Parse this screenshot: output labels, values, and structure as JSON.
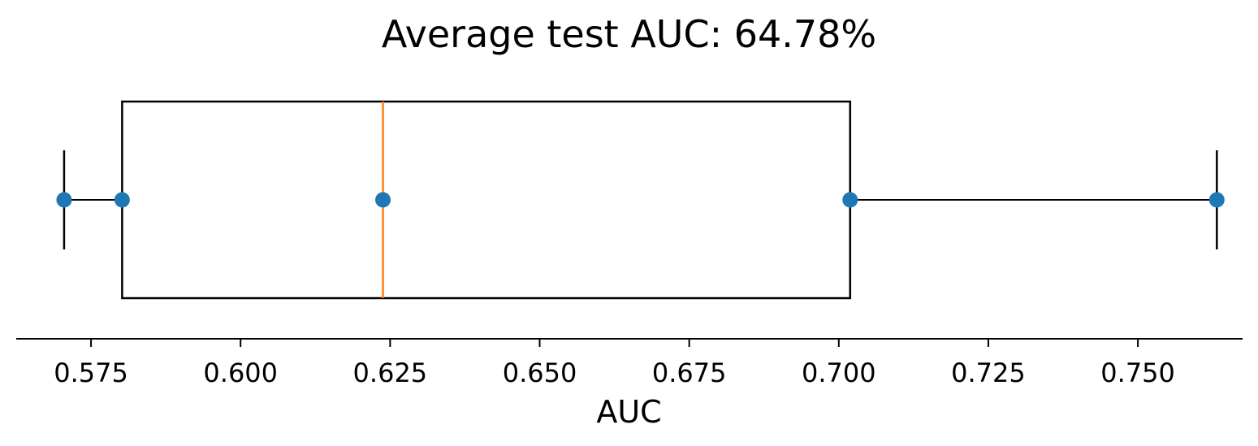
{
  "chart_data": {
    "type": "box",
    "title": "Average test AUC: 64.78%",
    "xlabel": "AUC",
    "ylabel": "",
    "xlim": [
      0.5625,
      0.7675
    ],
    "x_ticks": [
      0.575,
      0.6,
      0.625,
      0.65,
      0.675,
      0.7,
      0.725,
      0.75
    ],
    "x_tick_labels": [
      "0.575",
      "0.600",
      "0.625",
      "0.650",
      "0.675",
      "0.700",
      "0.725",
      "0.750"
    ],
    "orientation": "horizontal",
    "box": {
      "whisker_low": 0.5705,
      "q1": 0.5802,
      "median": 0.6238,
      "q3": 0.7019,
      "whisker_high": 0.7632
    },
    "points": [
      0.5705,
      0.5802,
      0.6238,
      0.7019,
      0.7632
    ],
    "grid": false,
    "colors": {
      "box": "#000000",
      "median": "#ff7f0e",
      "points": "#1f77b4",
      "axis": "#000000"
    }
  }
}
